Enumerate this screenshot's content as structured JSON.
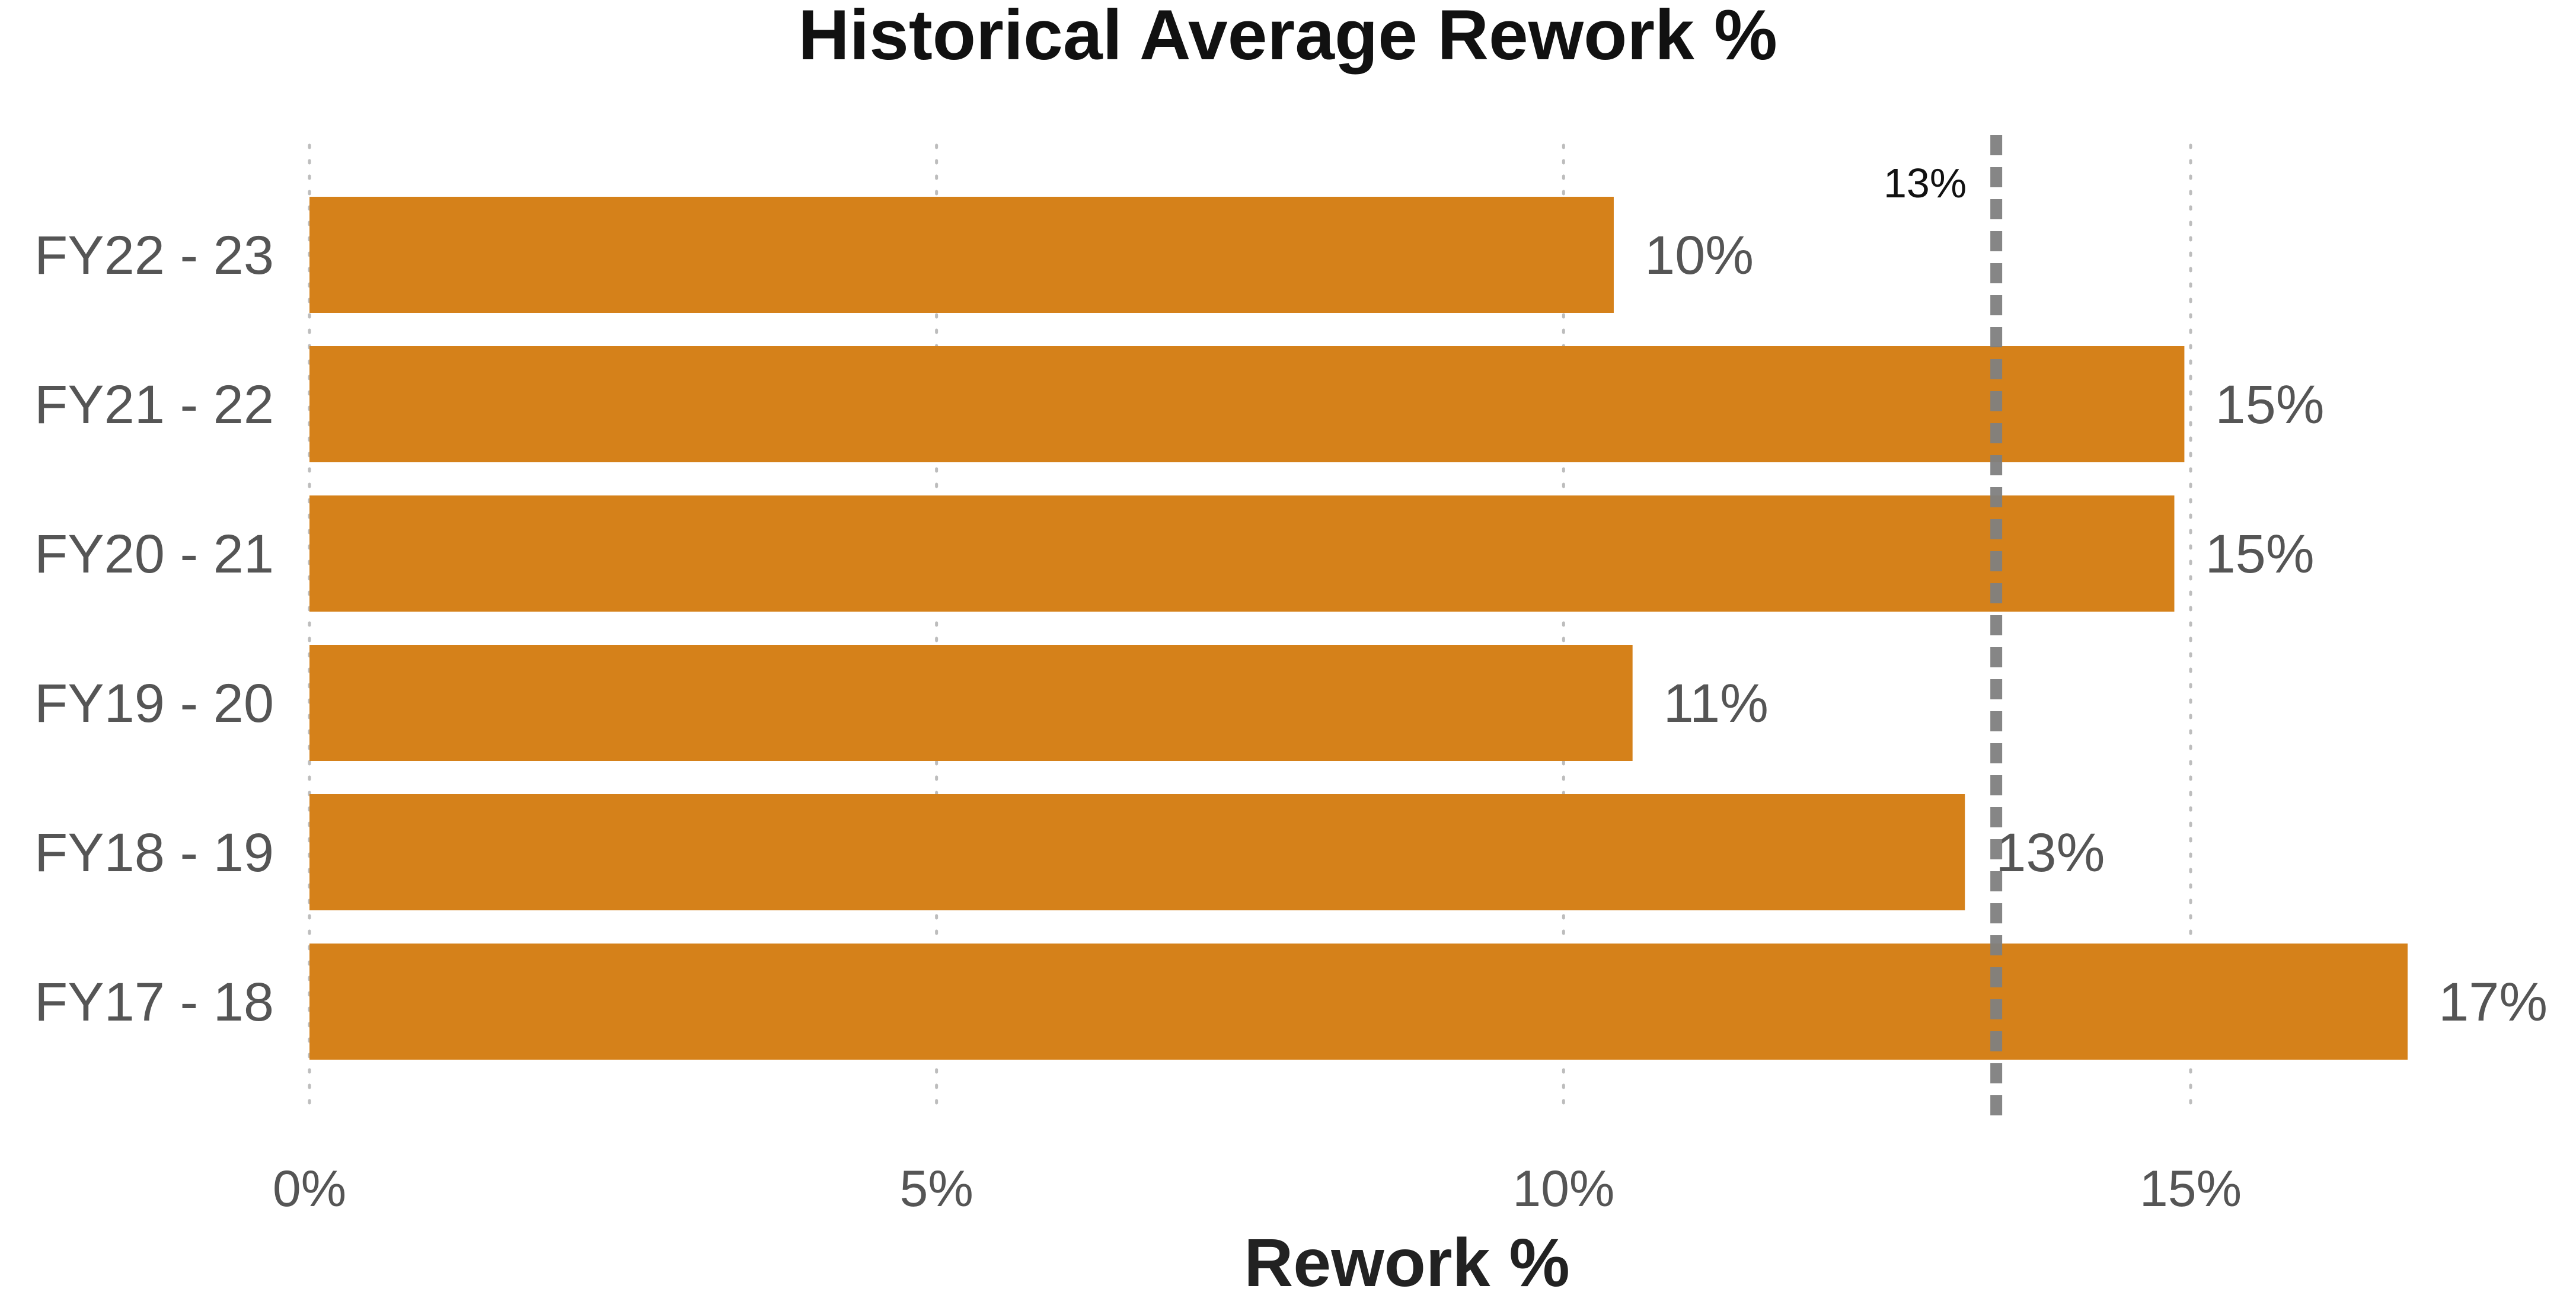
{
  "chart_data": {
    "type": "bar",
    "orientation": "horizontal",
    "title": "Historical Average Rework %",
    "xlabel": "Rework %",
    "ylabel": "",
    "categories": [
      "FY22 - 23",
      "FY21 - 22",
      "FY20 - 21",
      "FY19 - 20",
      "FY18 - 19",
      "FY17 - 18"
    ],
    "values": [
      10.4,
      14.95,
      14.87,
      10.55,
      13.2,
      16.73
    ],
    "data_labels": [
      "10%",
      "15%",
      "15%",
      "11%",
      "13%",
      "17%"
    ],
    "xlim": [
      0,
      17.5
    ],
    "xticks": [
      0,
      5,
      10,
      15
    ],
    "xtick_labels": [
      "0%",
      "5%",
      "10%",
      "15%"
    ],
    "reference_line": {
      "value": 13.45,
      "label": "13%",
      "style": "dashed",
      "color": "#808080"
    },
    "grid": "vertical dotted",
    "legend": "none",
    "bar_color": "#D5811A"
  }
}
